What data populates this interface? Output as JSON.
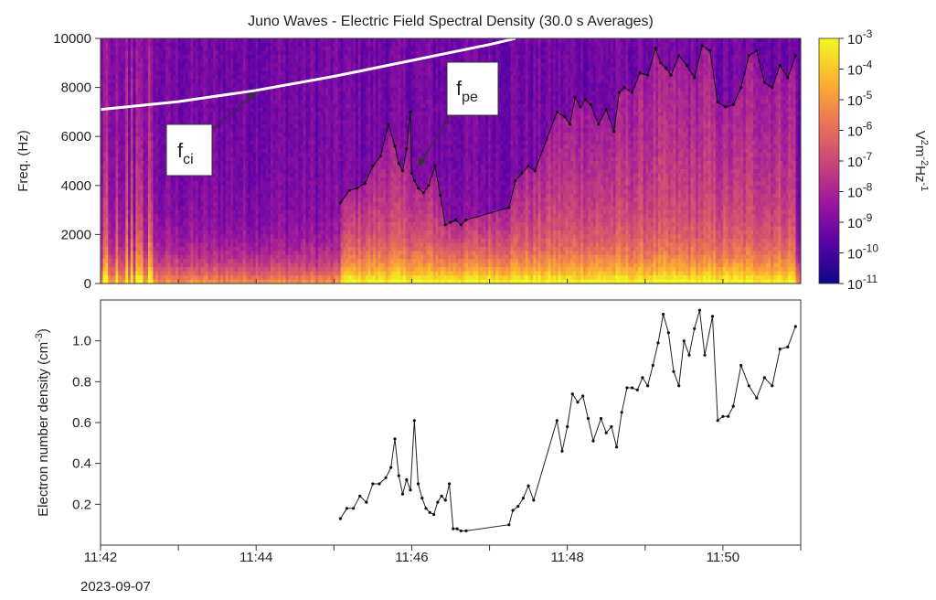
{
  "chart_data": [
    {
      "type": "heatmap",
      "title": "Juno Waves - Electric Field Spectral Density (30.0 s Averages)",
      "ylabel": "Freq. (Hz)",
      "ylim": [
        0,
        10000
      ],
      "yticks": [
        "0",
        "2000",
        "4000",
        "6000",
        "8000",
        "10000"
      ],
      "colorbar": {
        "label_base": "V",
        "label_sup1": "2",
        "label_mid1": "m",
        "label_sup2": "-2",
        "label_mid2": "Hz",
        "label_sup3": "-1",
        "log_scale": true,
        "range_exponents": [
          -11,
          -3
        ],
        "tick_base": "10",
        "tick_exponents": [
          "-3",
          "-4",
          "-5",
          "-6",
          "-7",
          "-8",
          "-9",
          "-10",
          "-11"
        ],
        "colors": [
          "#0d0887",
          "#5c01a6",
          "#9c179e",
          "#cc4778",
          "#ed7953",
          "#fdb42f",
          "#f0f921"
        ]
      },
      "annotations": [
        {
          "main": "f",
          "sub": "ci"
        },
        {
          "main": "f",
          "sub": "pe"
        }
      ],
      "fci_line": {
        "x": [
          "11:42",
          "11:43",
          "11:44",
          "11:45",
          "11:46",
          "11:47",
          "11:47:20"
        ],
        "y": [
          7100,
          7420,
          7880,
          8450,
          9100,
          9750,
          10000
        ]
      },
      "fpe_line": {
        "x": [
          "11:45:05",
          "11:45:12",
          "11:45:18",
          "11:45:24",
          "11:45:30",
          "11:45:36",
          "11:45:42",
          "11:45:47",
          "11:45:50",
          "11:45:53",
          "11:45:56",
          "11:45:59",
          "11:46:00",
          "11:46:02",
          "11:46:05",
          "11:46:09",
          "11:46:13",
          "11:46:18",
          "11:46:22",
          "11:46:26",
          "11:46:30",
          "11:46:34",
          "11:46:38",
          "11:46:42",
          "11:47:15",
          "11:47:20",
          "11:47:25",
          "11:47:30",
          "11:47:35",
          "11:47:52",
          "11:47:58",
          "11:48:02",
          "11:48:06",
          "11:48:10",
          "11:48:14",
          "11:48:18",
          "11:48:24",
          "11:48:30",
          "11:48:36",
          "11:48:40",
          "11:48:44",
          "11:48:50",
          "11:48:56",
          "11:49:02",
          "11:49:08",
          "11:49:12",
          "11:49:16",
          "11:49:20",
          "11:49:26",
          "11:49:32",
          "11:49:38",
          "11:49:44",
          "11:49:50",
          "11:49:56",
          "11:50:02",
          "11:50:08",
          "11:50:14",
          "11:50:20",
          "11:50:26",
          "11:50:32",
          "11:50:38",
          "11:50:44",
          "11:50:50",
          "11:50:56"
        ],
        "y": [
          3300,
          3800,
          3900,
          4100,
          4800,
          5200,
          6500,
          5600,
          4900,
          4600,
          5500,
          7000,
          4500,
          4200,
          3900,
          3700,
          4000,
          4800,
          3600,
          2400,
          2500,
          2600,
          2400,
          2600,
          3100,
          4200,
          4500,
          4800,
          4600,
          7000,
          6800,
          6500,
          7600,
          7200,
          7500,
          7300,
          6500,
          7100,
          6200,
          7800,
          8000,
          7800,
          8600,
          8500,
          9600,
          9000,
          8800,
          8500,
          9300,
          8900,
          8400,
          9700,
          9500,
          7400,
          7200,
          7300,
          8000,
          9300,
          9500,
          8200,
          8000,
          8900,
          8400,
          9300
        ]
      }
    },
    {
      "type": "line",
      "ylabel": "Electron number density (cm",
      "ylabel_sup": "-3",
      "ylabel_end": ")",
      "xlabel_date": "2023-09-07",
      "xlim": [
        "11:42",
        "11:51"
      ],
      "ylim": [
        0.0,
        1.2
      ],
      "yticks": [
        "0.2",
        "0.4",
        "0.6",
        "0.8",
        "1.0"
      ],
      "xticks": [
        "11:42",
        "11:44",
        "11:46",
        "11:48",
        "11:50"
      ],
      "x": [
        "11:45:05",
        "11:45:10",
        "11:45:15",
        "11:45:20",
        "11:45:25",
        "11:45:30",
        "11:45:35",
        "11:45:40",
        "11:45:44",
        "11:45:47",
        "11:45:50",
        "11:45:53",
        "11:45:56",
        "11:45:59",
        "11:46:02",
        "11:46:05",
        "11:46:08",
        "11:46:11",
        "11:46:14",
        "11:46:17",
        "11:46:20",
        "11:46:23",
        "11:46:26",
        "11:46:29",
        "11:46:32",
        "11:46:35",
        "11:46:38",
        "11:46:42",
        "11:47:15",
        "11:47:18",
        "11:47:22",
        "11:47:26",
        "11:47:30",
        "11:47:34",
        "11:47:52",
        "11:47:56",
        "11:48:00",
        "11:48:04",
        "11:48:08",
        "11:48:12",
        "11:48:16",
        "11:48:20",
        "11:48:26",
        "11:48:30",
        "11:48:34",
        "11:48:38",
        "11:48:42",
        "11:48:46",
        "11:48:50",
        "11:48:54",
        "11:48:58",
        "11:49:02",
        "11:49:06",
        "11:49:10",
        "11:49:14",
        "11:49:18",
        "11:49:22",
        "11:49:26",
        "11:49:30",
        "11:49:34",
        "11:49:38",
        "11:49:42",
        "11:49:46",
        "11:49:52",
        "11:49:56",
        "11:50:00",
        "11:50:04",
        "11:50:08",
        "11:50:14",
        "11:50:20",
        "11:50:26",
        "11:50:32",
        "11:50:38",
        "11:50:44",
        "11:50:50",
        "11:50:56"
      ],
      "y": [
        0.13,
        0.18,
        0.18,
        0.24,
        0.21,
        0.3,
        0.3,
        0.33,
        0.38,
        0.52,
        0.34,
        0.25,
        0.32,
        0.27,
        0.61,
        0.3,
        0.23,
        0.18,
        0.16,
        0.15,
        0.21,
        0.24,
        0.22,
        0.3,
        0.08,
        0.08,
        0.07,
        0.07,
        0.1,
        0.17,
        0.19,
        0.23,
        0.29,
        0.22,
        0.61,
        0.46,
        0.58,
        0.74,
        0.7,
        0.73,
        0.62,
        0.51,
        0.62,
        0.55,
        0.58,
        0.48,
        0.65,
        0.77,
        0.77,
        0.76,
        0.82,
        0.78,
        0.88,
        0.99,
        1.13,
        1.04,
        0.85,
        0.78,
        1.0,
        0.93,
        1.06,
        1.15,
        0.93,
        1.12,
        0.61,
        0.63,
        0.63,
        0.68,
        0.88,
        0.78,
        0.72,
        0.82,
        0.78,
        0.96,
        0.97,
        1.07
      ]
    }
  ]
}
